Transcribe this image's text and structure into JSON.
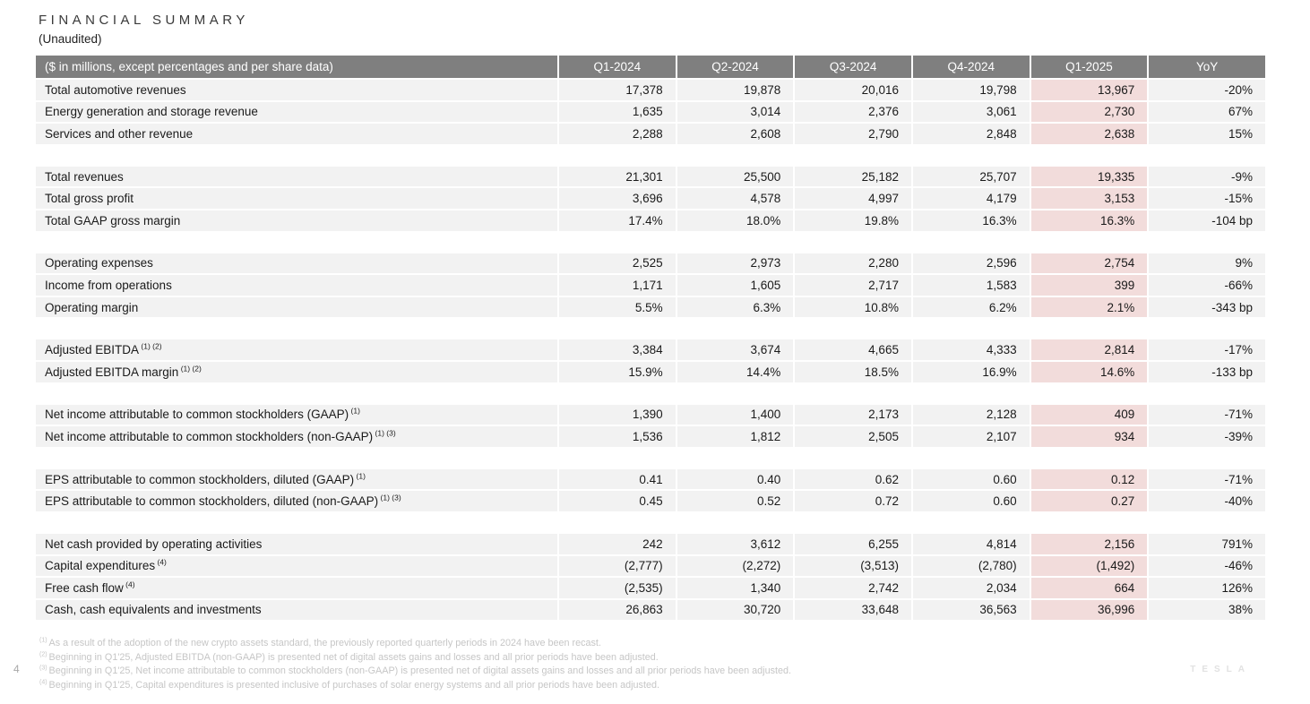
{
  "page": {
    "title": "FINANCIAL SUMMARY",
    "subtitle": "(Unaudited)",
    "page_number": "4",
    "brand": "TESLA"
  },
  "colors": {
    "header_bg": "#7f7f7f",
    "header_text": "#ffffff",
    "row_bg": "#f2f2f2",
    "highlight_bg": "#f2dcdb",
    "label_text": "#1a1a1a",
    "footnote_text": "#c6c6c6",
    "brand_text": "#e2e2e2",
    "pagenum_text": "#a8a8a8"
  },
  "table": {
    "header": [
      "($ in millions, except percentages and per share data)",
      "Q1-2024",
      "Q2-2024",
      "Q3-2024",
      "Q4-2024",
      "Q1-2025",
      "YoY"
    ],
    "highlight_column": "Q1-2025",
    "rows": [
      {
        "type": "data",
        "label": "Total automotive revenues",
        "sup": "",
        "values": [
          "17,378",
          "19,878",
          "20,016",
          "19,798",
          "13,967",
          "-20%"
        ]
      },
      {
        "type": "data",
        "label": "Energy generation and storage revenue",
        "sup": "",
        "values": [
          "1,635",
          "3,014",
          "2,376",
          "3,061",
          "2,730",
          "67%"
        ]
      },
      {
        "type": "data",
        "label": "Services and other revenue",
        "sup": "",
        "values": [
          "2,288",
          "2,608",
          "2,790",
          "2,848",
          "2,638",
          "15%"
        ]
      },
      {
        "type": "spacer"
      },
      {
        "type": "data",
        "label": "Total revenues",
        "sup": "",
        "values": [
          "21,301",
          "25,500",
          "25,182",
          "25,707",
          "19,335",
          "-9%"
        ]
      },
      {
        "type": "data",
        "label": "Total gross profit",
        "sup": "",
        "values": [
          "3,696",
          "4,578",
          "4,997",
          "4,179",
          "3,153",
          "-15%"
        ]
      },
      {
        "type": "data",
        "label": "Total GAAP gross margin",
        "sup": "",
        "values": [
          "17.4%",
          "18.0%",
          "19.8%",
          "16.3%",
          "16.3%",
          "-104 bp"
        ]
      },
      {
        "type": "spacer"
      },
      {
        "type": "data",
        "label": "Operating expenses",
        "sup": "",
        "values": [
          "2,525",
          "2,973",
          "2,280",
          "2,596",
          "2,754",
          "9%"
        ]
      },
      {
        "type": "data",
        "label": "Income from operations",
        "sup": "",
        "values": [
          "1,171",
          "1,605",
          "2,717",
          "1,583",
          "399",
          "-66%"
        ]
      },
      {
        "type": "data",
        "label": "Operating margin",
        "sup": "",
        "values": [
          "5.5%",
          "6.3%",
          "10.8%",
          "6.2%",
          "2.1%",
          "-343 bp"
        ]
      },
      {
        "type": "spacer"
      },
      {
        "type": "data",
        "label": "Adjusted EBITDA",
        "sup": "(1) (2)",
        "values": [
          "3,384",
          "3,674",
          "4,665",
          "4,333",
          "2,814",
          "-17%"
        ]
      },
      {
        "type": "data",
        "label": "Adjusted EBITDA margin",
        "sup": "(1) (2)",
        "values": [
          "15.9%",
          "14.4%",
          "18.5%",
          "16.9%",
          "14.6%",
          "-133 bp"
        ]
      },
      {
        "type": "spacer"
      },
      {
        "type": "data",
        "label": "Net income attributable to common stockholders (GAAP)",
        "sup": "(1)",
        "values": [
          "1,390",
          "1,400",
          "2,173",
          "2,128",
          "409",
          "-71%"
        ]
      },
      {
        "type": "data",
        "label": "Net income attributable to common stockholders (non-GAAP)",
        "sup": "(1) (3)",
        "values": [
          "1,536",
          "1,812",
          "2,505",
          "2,107",
          "934",
          "-39%"
        ]
      },
      {
        "type": "spacer"
      },
      {
        "type": "data",
        "label": "EPS attributable to common stockholders, diluted (GAAP)",
        "sup": "(1)",
        "values": [
          "0.41",
          "0.40",
          "0.62",
          "0.60",
          "0.12",
          "-71%"
        ]
      },
      {
        "type": "data",
        "label": "EPS attributable to common stockholders, diluted (non-GAAP)",
        "sup": "(1) (3)",
        "values": [
          "0.45",
          "0.52",
          "0.72",
          "0.60",
          "0.27",
          "-40%"
        ]
      },
      {
        "type": "spacer"
      },
      {
        "type": "data",
        "label": "Net cash provided by operating activities",
        "sup": "",
        "values": [
          "242",
          "3,612",
          "6,255",
          "4,814",
          "2,156",
          "791%"
        ]
      },
      {
        "type": "data",
        "label": "Capital expenditures",
        "sup": "(4)",
        "values": [
          "(2,777)",
          "(2,272)",
          "(3,513)",
          "(2,780)",
          "(1,492)",
          "-46%"
        ]
      },
      {
        "type": "data",
        "label": "Free cash flow",
        "sup": "(4)",
        "values": [
          "(2,535)",
          "1,340",
          "2,742",
          "2,034",
          "664",
          "126%"
        ]
      },
      {
        "type": "data",
        "label": "Cash, cash equivalents and investments",
        "sup": "",
        "values": [
          "26,863",
          "30,720",
          "33,648",
          "36,563",
          "36,996",
          "38%"
        ]
      }
    ]
  },
  "footnotes": [
    {
      "marker": "(1)",
      "text": "As a result of the adoption of the new crypto assets standard, the previously reported quarterly periods in 2024 have been recast."
    },
    {
      "marker": "(2)",
      "text": "Beginning in Q1'25, Adjusted EBITDA (non-GAAP) is presented net of digital assets gains and losses and all prior periods have been adjusted."
    },
    {
      "marker": "(3)",
      "text": "Beginning in Q1'25, Net income attributable to common stockholders (non-GAAP) is presented net of digital assets gains and losses and all prior periods have been adjusted."
    },
    {
      "marker": "(4)",
      "text": "Beginning in Q1'25, Capital expenditures is presented inclusive of purchases of solar energy systems and all prior periods have been adjusted."
    }
  ]
}
